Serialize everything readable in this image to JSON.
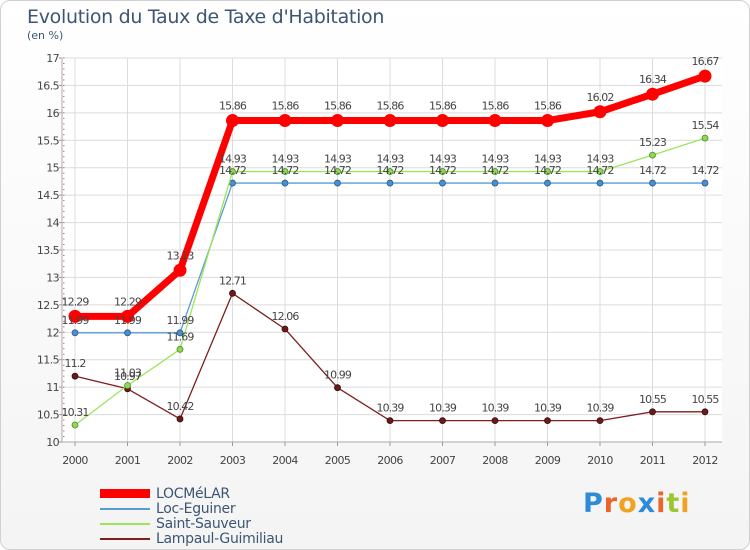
{
  "title": "Evolution du Taux de Taxe d'Habitation",
  "unit_label": "(en %)",
  "logo": "Proxiti",
  "chart_data": {
    "type": "line",
    "title": "Evolution du Taux de Taxe d'Habitation",
    "ylabel": "(en %)",
    "x": [
      "2000",
      "2001",
      "2002",
      "2003",
      "2004",
      "2005",
      "2006",
      "2007",
      "2008",
      "2009",
      "2010",
      "2011",
      "2012"
    ],
    "ylim": [
      10,
      17
    ],
    "yticks": [
      "10",
      "10.5",
      "11",
      "11.5",
      "12",
      "12.5",
      "13",
      "13.5",
      "14",
      "14.5",
      "15",
      "15.5",
      "16",
      "16.5",
      "17"
    ],
    "grid": true,
    "legend_position": "bottom-left",
    "series": [
      {
        "name": "LOCMéLAR",
        "color": "#ff0000",
        "values": [
          12.29,
          12.29,
          13.13,
          15.86,
          15.86,
          15.86,
          15.86,
          15.86,
          15.86,
          15.86,
          16.02,
          16.34,
          16.67
        ],
        "labels": [
          "12.29",
          "12.29",
          "13.13",
          "15.86",
          "15.86",
          "15.86",
          "15.86",
          "15.86",
          "15.86",
          "15.86",
          "16.02",
          "16.34",
          "16.67"
        ]
      },
      {
        "name": "Loc-Eguiner",
        "color": "#5b9bd5",
        "values": [
          11.99,
          11.99,
          11.99,
          14.72,
          14.72,
          14.72,
          14.72,
          14.72,
          14.72,
          14.72,
          14.72,
          14.72,
          14.72
        ],
        "labels": [
          "11.99",
          "11.99",
          "11.99",
          "14.72",
          "14.72",
          "14.72",
          "14.72",
          "14.72",
          "14.72",
          "14.72",
          "14.72",
          "14.72",
          "14.72"
        ]
      },
      {
        "name": "Saint-Sauveur",
        "color": "#9be55b",
        "values": [
          10.31,
          11.03,
          11.69,
          14.93,
          14.93,
          14.93,
          14.93,
          14.93,
          14.93,
          14.93,
          14.93,
          15.23,
          15.54
        ],
        "labels": [
          "10.31",
          "11.03",
          "11.69",
          "14.93",
          "14.93",
          "14.93",
          "14.93",
          "14.93",
          "14.93",
          "14.93",
          "14.93",
          "15.23",
          "15.54"
        ]
      },
      {
        "name": "Lampaul-Guimiliau",
        "color": "#7b1f1f",
        "values": [
          11.2,
          10.97,
          10.42,
          12.71,
          12.06,
          10.99,
          10.39,
          10.39,
          10.39,
          10.39,
          10.39,
          10.55,
          10.55
        ],
        "labels": [
          "11.2",
          "10.97",
          "10.42",
          "12.71",
          "12.06",
          "10.99",
          "10.39",
          "10.39",
          "10.39",
          "10.39",
          "10.39",
          "10.55",
          "10.55"
        ]
      }
    ]
  }
}
